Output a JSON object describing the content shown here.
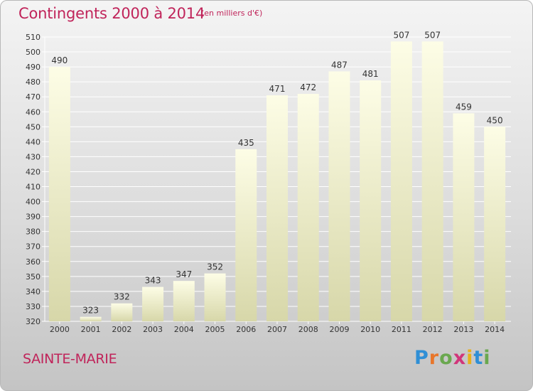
{
  "header": {
    "title": "Contingents 2000 à 2014",
    "unit": "(en milliers d'€)"
  },
  "footer": {
    "commune": "SAINTE-MARIE",
    "brand_letters": [
      "P",
      "r",
      "o",
      "x",
      "i",
      "t",
      "i"
    ],
    "brand_colors": [
      "#2f8fd6",
      "#e8762b",
      "#6aa84f",
      "#d1357a",
      "#e8b01c",
      "#2f8fd6",
      "#6aa84f"
    ]
  },
  "colors": {
    "title": "#c0245a",
    "bar_top": "#fdfde6",
    "bar_bottom": "#d7d7a9",
    "grid": "#ffffff",
    "axis_text": "#333333"
  },
  "chart_data": {
    "type": "bar",
    "categories": [
      "2000",
      "2001",
      "2002",
      "2003",
      "2004",
      "2005",
      "2006",
      "2007",
      "2008",
      "2009",
      "2010",
      "2011",
      "2012",
      "2013",
      "2014"
    ],
    "values": [
      490,
      323,
      332,
      343,
      347,
      352,
      435,
      471,
      472,
      487,
      481,
      507,
      507,
      459,
      450
    ],
    "title": "Contingents 2000 à 2014",
    "ylim": [
      320,
      510
    ],
    "ytick_step": 10,
    "grid": true
  }
}
